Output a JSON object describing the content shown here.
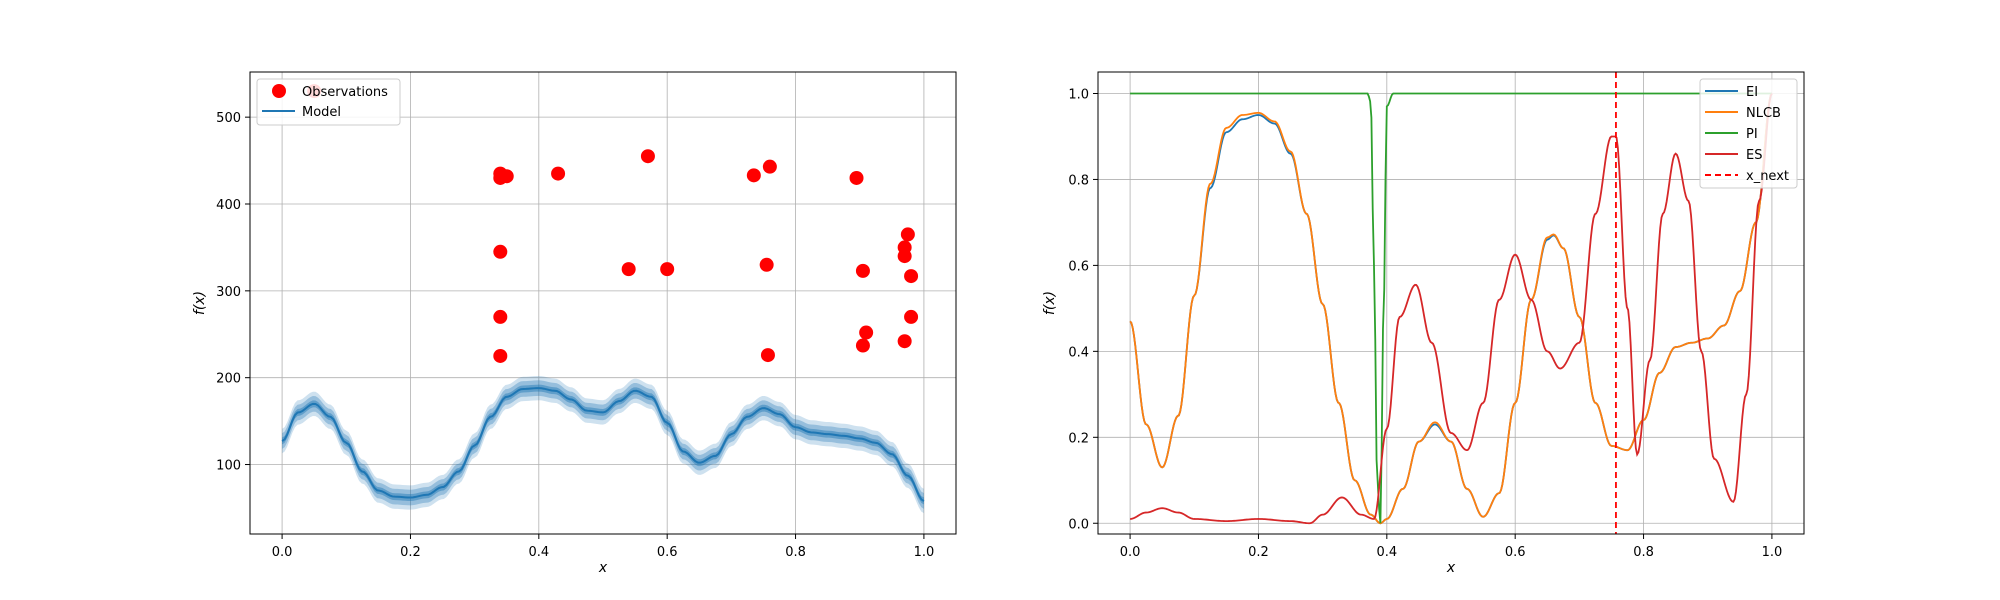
{
  "chart_data": [
    {
      "type": "scatter",
      "title": "",
      "xlabel": "x",
      "ylabel": "f(x)",
      "xlim": [
        -0.05,
        1.05
      ],
      "ylim": [
        20,
        552
      ],
      "xticks": [
        "0.0",
        "0.2",
        "0.4",
        "0.6",
        "0.8",
        "1.0"
      ],
      "yticks": [
        "100",
        "200",
        "300",
        "400",
        "500"
      ],
      "grid": true,
      "legend_position": "top-left",
      "legend": [
        "Observations",
        "Model"
      ],
      "series": [
        {
          "name": "Observations",
          "color": "#ff0000",
          "points": [
            [
              0.05,
              530
            ],
            [
              0.34,
              435
            ],
            [
              0.34,
              430
            ],
            [
              0.35,
              432
            ],
            [
              0.43,
              435
            ],
            [
              0.57,
              455
            ],
            [
              0.735,
              433
            ],
            [
              0.76,
              443
            ],
            [
              0.895,
              430
            ],
            [
              0.34,
              345
            ],
            [
              0.54,
              325
            ],
            [
              0.6,
              325
            ],
            [
              0.755,
              330
            ],
            [
              0.905,
              323
            ],
            [
              0.97,
              350
            ],
            [
              0.975,
              365
            ],
            [
              0.97,
              340
            ],
            [
              0.98,
              317
            ],
            [
              0.34,
              270
            ],
            [
              0.98,
              270
            ],
            [
              0.91,
              252
            ],
            [
              0.905,
              237
            ],
            [
              0.97,
              242
            ],
            [
              0.34,
              225
            ],
            [
              0.757,
              226
            ]
          ]
        },
        {
          "name": "Model",
          "color": "#1f77b4",
          "x": [
            0,
            0.025,
            0.05,
            0.075,
            0.1,
            0.125,
            0.15,
            0.175,
            0.2,
            0.225,
            0.25,
            0.275,
            0.3,
            0.325,
            0.35,
            0.375,
            0.4,
            0.425,
            0.45,
            0.475,
            0.5,
            0.525,
            0.55,
            0.575,
            0.6,
            0.625,
            0.65,
            0.675,
            0.7,
            0.725,
            0.75,
            0.775,
            0.8,
            0.825,
            0.85,
            0.875,
            0.9,
            0.925,
            0.95,
            0.975,
            1.0
          ],
          "mean": [
            127,
            160,
            170,
            155,
            125,
            92,
            70,
            63,
            62,
            65,
            74,
            92,
            122,
            155,
            178,
            187,
            188,
            185,
            175,
            162,
            160,
            173,
            185,
            178,
            148,
            115,
            102,
            110,
            135,
            155,
            165,
            158,
            143,
            137,
            135,
            133,
            130,
            125,
            112,
            87,
            58
          ],
          "band_half_widths": [
            4,
            9,
            14
          ]
        }
      ]
    },
    {
      "type": "line",
      "title": "",
      "xlabel": "x",
      "ylabel": "f(x)",
      "xlim": [
        -0.05,
        1.05
      ],
      "ylim": [
        -0.025,
        1.05
      ],
      "xticks": [
        "0.0",
        "0.2",
        "0.4",
        "0.6",
        "0.8",
        "1.0"
      ],
      "yticks": [
        "0.0",
        "0.2",
        "0.4",
        "0.6",
        "0.8",
        "1.0"
      ],
      "grid": true,
      "legend_position": "top-right",
      "legend": [
        "EI",
        "NLCB",
        "PI",
        "ES",
        "x_next"
      ],
      "x_next": 0.757,
      "series": [
        {
          "name": "EI",
          "color": "#1f77b4",
          "x": [
            0,
            0.025,
            0.05,
            0.075,
            0.1,
            0.125,
            0.15,
            0.175,
            0.2,
            0.225,
            0.25,
            0.275,
            0.3,
            0.325,
            0.35,
            0.375,
            0.39,
            0.4,
            0.425,
            0.45,
            0.475,
            0.5,
            0.525,
            0.55,
            0.575,
            0.6,
            0.625,
            0.65,
            0.66,
            0.675,
            0.7,
            0.725,
            0.75,
            0.775,
            0.8,
            0.825,
            0.85,
            0.875,
            0.9,
            0.925,
            0.95,
            0.975,
            1.0
          ],
          "values": [
            0.47,
            0.23,
            0.13,
            0.25,
            0.53,
            0.78,
            0.91,
            0.94,
            0.95,
            0.93,
            0.86,
            0.72,
            0.51,
            0.28,
            0.1,
            0.02,
            0.0,
            0.01,
            0.08,
            0.19,
            0.23,
            0.19,
            0.08,
            0.015,
            0.07,
            0.28,
            0.52,
            0.66,
            0.67,
            0.64,
            0.48,
            0.28,
            0.18,
            0.17,
            0.24,
            0.35,
            0.41,
            0.42,
            0.43,
            0.46,
            0.54,
            0.7,
            1.0
          ]
        },
        {
          "name": "NLCB",
          "color": "#ff7f0e",
          "x": [
            0,
            0.025,
            0.05,
            0.075,
            0.1,
            0.125,
            0.15,
            0.175,
            0.2,
            0.225,
            0.25,
            0.275,
            0.3,
            0.325,
            0.35,
            0.375,
            0.39,
            0.4,
            0.425,
            0.45,
            0.475,
            0.5,
            0.525,
            0.55,
            0.575,
            0.6,
            0.625,
            0.65,
            0.66,
            0.675,
            0.7,
            0.725,
            0.75,
            0.775,
            0.8,
            0.825,
            0.85,
            0.875,
            0.9,
            0.925,
            0.95,
            0.975,
            1.0
          ],
          "values": [
            0.47,
            0.23,
            0.13,
            0.25,
            0.53,
            0.79,
            0.92,
            0.95,
            0.955,
            0.935,
            0.865,
            0.72,
            0.51,
            0.28,
            0.1,
            0.02,
            0.0,
            0.01,
            0.08,
            0.19,
            0.235,
            0.19,
            0.08,
            0.015,
            0.07,
            0.28,
            0.52,
            0.665,
            0.672,
            0.64,
            0.48,
            0.28,
            0.18,
            0.17,
            0.24,
            0.35,
            0.41,
            0.42,
            0.43,
            0.46,
            0.54,
            0.7,
            1.0
          ]
        },
        {
          "name": "PI",
          "color": "#2ca02c",
          "x": [
            0,
            0.37,
            0.375,
            0.38,
            0.385,
            0.39,
            0.395,
            0.4,
            0.41,
            1.0
          ],
          "values": [
            1.0,
            1.0,
            0.98,
            0.6,
            0.1,
            0.0,
            0.5,
            0.97,
            1.0,
            1.0
          ]
        },
        {
          "name": "ES",
          "color": "#d62728",
          "x": [
            0,
            0.025,
            0.05,
            0.075,
            0.1,
            0.15,
            0.2,
            0.25,
            0.28,
            0.3,
            0.33,
            0.36,
            0.38,
            0.4,
            0.42,
            0.445,
            0.47,
            0.5,
            0.525,
            0.55,
            0.575,
            0.6,
            0.625,
            0.65,
            0.67,
            0.7,
            0.725,
            0.75,
            0.757,
            0.775,
            0.79,
            0.81,
            0.83,
            0.85,
            0.87,
            0.89,
            0.91,
            0.94,
            0.96,
            0.98,
            1.0
          ],
          "values": [
            0.01,
            0.025,
            0.035,
            0.025,
            0.01,
            0.005,
            0.01,
            0.005,
            0.0,
            0.02,
            0.06,
            0.02,
            0.01,
            0.22,
            0.48,
            0.555,
            0.42,
            0.21,
            0.17,
            0.28,
            0.52,
            0.625,
            0.52,
            0.4,
            0.36,
            0.42,
            0.72,
            0.9,
            0.9,
            0.5,
            0.16,
            0.38,
            0.72,
            0.86,
            0.75,
            0.4,
            0.15,
            0.05,
            0.3,
            0.75,
            1.0
          ]
        }
      ]
    }
  ]
}
